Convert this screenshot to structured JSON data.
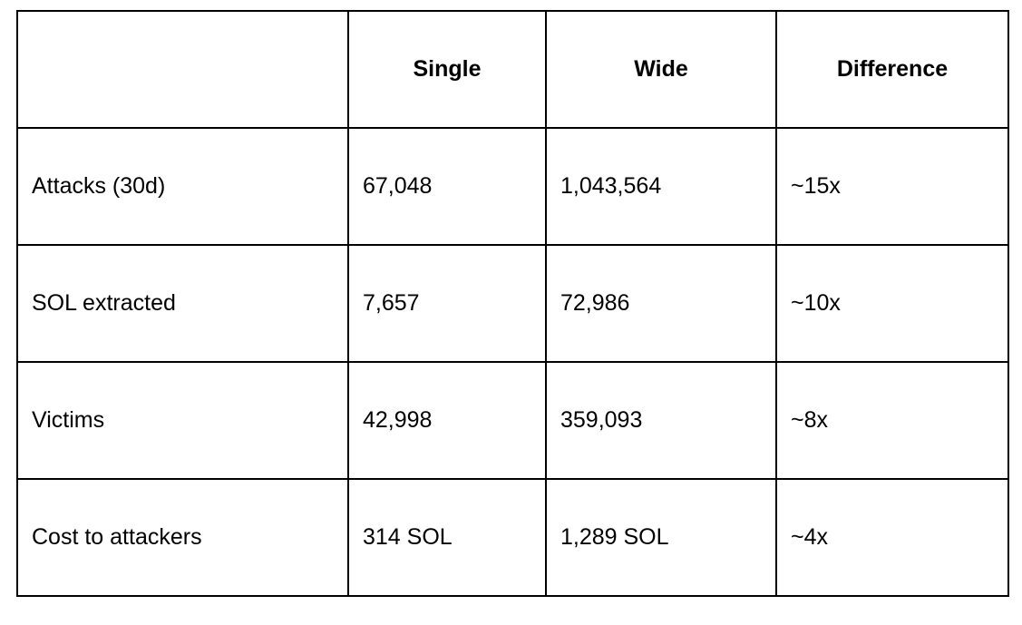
{
  "table": {
    "columns": [
      "Single",
      "Wide",
      "Difference"
    ],
    "rows": [
      {
        "label": "Attacks (30d)",
        "cells": [
          "67,048",
          "1,043,564",
          "~15x"
        ]
      },
      {
        "label": "SOL extracted",
        "cells": [
          "7,657",
          "72,986",
          "~10x"
        ]
      },
      {
        "label": "Victims",
        "cells": [
          "42,998",
          "359,093",
          "~8x"
        ]
      },
      {
        "label": "Cost to attackers",
        "cells": [
          "314 SOL",
          "1,289 SOL",
          "~4x"
        ]
      }
    ]
  }
}
